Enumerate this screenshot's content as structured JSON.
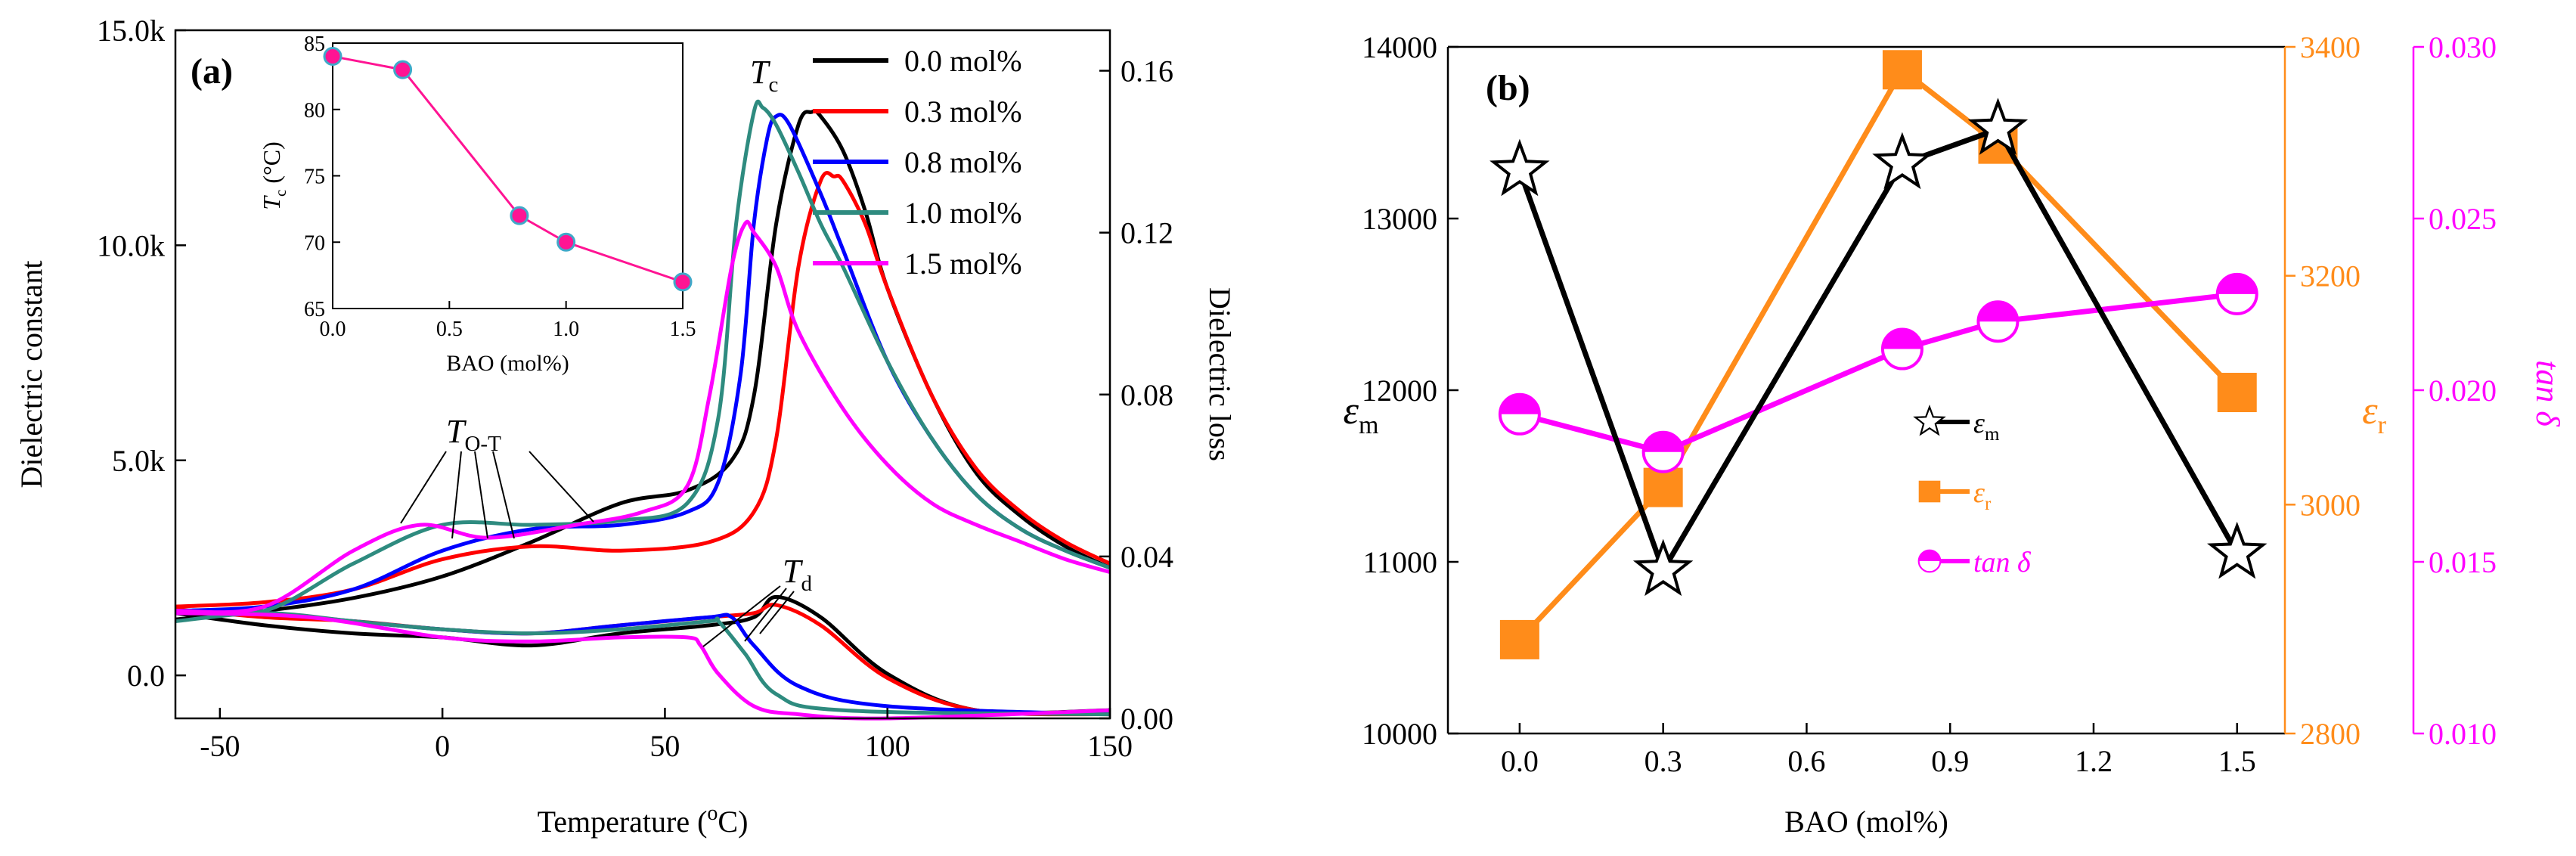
{
  "figure": {
    "panel_a_label": "(a)",
    "panel_b_label": "(b)"
  },
  "chart_data": [
    {
      "id": "a",
      "type": "line",
      "title": "",
      "xlabel": "Temperature (°C)",
      "ylabel_left": "Dielectric constant",
      "ylabel_right": "Dielectric loss",
      "xlim": [
        -60,
        150
      ],
      "ylim_left": [
        -1000,
        15000
      ],
      "ylim_right": [
        0.0,
        0.17
      ],
      "x_ticks": [
        -50,
        0,
        50,
        100,
        150
      ],
      "y_left_ticks": [
        0,
        5000,
        10000,
        15000
      ],
      "y_left_tick_labels": [
        "0.0",
        "5.0k",
        "10.0k",
        "15.0k"
      ],
      "y_right_ticks": [
        0.0,
        0.04,
        0.08,
        0.12,
        0.16
      ],
      "y_right_tick_labels": [
        "0.00",
        "0.04",
        "0.08",
        "0.12",
        "0.16"
      ],
      "annotations": {
        "Tc": {
          "main": "T",
          "sub": "c"
        },
        "TOT": {
          "main": "T",
          "sub": "O-T"
        },
        "Td": {
          "main": "T",
          "sub": "d"
        }
      },
      "series": [
        {
          "name": "0.0 mol%",
          "color": "#000000",
          "constant": {
            "x": [
              -60,
              -40,
              -20,
              0,
              20,
              40,
              55,
              65,
              70,
              75,
              80,
              83,
              85,
              90,
              95,
              100,
              110,
              120,
              130,
              140,
              150
            ],
            "y": [
              1300,
              1500,
              1800,
              2300,
              3100,
              4000,
              4300,
              5000,
              6500,
              10500,
              12800,
              13100,
              13000,
              12200,
              10800,
              9000,
              6500,
              4700,
              3700,
              3000,
              2500
            ]
          },
          "loss": {
            "x": [
              -60,
              -40,
              -20,
              0,
              20,
              40,
              60,
              70,
              75,
              85,
              100,
              120,
              150
            ],
            "y": [
              0.026,
              0.023,
              0.021,
              0.02,
              0.018,
              0.021,
              0.023,
              0.025,
              0.03,
              0.025,
              0.011,
              0.002,
              0.002
            ]
          }
        },
        {
          "name": "0.3 mol%",
          "color": "#ff0000",
          "constant": {
            "x": [
              -60,
              -40,
              -20,
              0,
              20,
              40,
              60,
              70,
              75,
              80,
              85,
              88,
              90,
              95,
              100,
              110,
              120,
              130,
              140,
              150
            ],
            "y": [
              1600,
              1700,
              2000,
              2700,
              3000,
              2900,
              3100,
              3800,
              5500,
              9500,
              11500,
              11600,
              11500,
              10500,
              9000,
              6500,
              4800,
              3800,
              3100,
              2600
            ]
          },
          "loss": {
            "x": [
              -60,
              -40,
              -20,
              0,
              20,
              40,
              60,
              70,
              75,
              85,
              100,
              120,
              150
            ],
            "y": [
              0.027,
              0.025,
              0.024,
              0.022,
              0.021,
              0.023,
              0.025,
              0.026,
              0.028,
              0.023,
              0.01,
              0.002,
              0.001
            ]
          }
        },
        {
          "name": "0.8 mol%",
          "color": "#0000ff",
          "constant": {
            "x": [
              -60,
              -40,
              -20,
              0,
              20,
              40,
              55,
              62,
              67,
              70,
              73,
              75,
              78,
              85,
              90,
              100,
              110,
              120,
              130,
              140,
              150
            ],
            "y": [
              1500,
              1600,
              2000,
              2900,
              3400,
              3500,
              3800,
              4500,
              7000,
              10500,
              12500,
              13000,
              12800,
              11200,
              9900,
              7300,
              5500,
              4200,
              3400,
              2900,
              2500
            ]
          },
          "loss": {
            "x": [
              -60,
              -40,
              -20,
              0,
              20,
              40,
              60,
              65,
              70,
              80,
              100,
              150
            ],
            "y": [
              0.026,
              0.026,
              0.024,
              0.022,
              0.021,
              0.023,
              0.025,
              0.025,
              0.018,
              0.008,
              0.003,
              0.001
            ]
          }
        },
        {
          "name": "1.0 mol%",
          "color": "#2e8b7f",
          "constant": {
            "x": [
              -60,
              -40,
              -20,
              0,
              20,
              40,
              55,
              62,
              66,
              70,
              72,
              75,
              80,
              85,
              90,
              100,
              110,
              120,
              130,
              140,
              150
            ],
            "y": [
              1500,
              1500,
              2600,
              3500,
              3500,
              3600,
              4000,
              6000,
              10500,
              13100,
              13200,
              12800,
              11700,
              10500,
              9500,
              7300,
              5500,
              4200,
              3400,
              2900,
              2500
            ]
          },
          "loss": {
            "x": [
              -60,
              -40,
              -20,
              0,
              20,
              40,
              60,
              62,
              68,
              75,
              90,
              150
            ],
            "y": [
              0.024,
              0.026,
              0.024,
              0.022,
              0.021,
              0.022,
              0.024,
              0.024,
              0.016,
              0.006,
              0.002,
              0.001
            ]
          }
        },
        {
          "name": "1.5  mol%",
          "color": "#ff00ff",
          "constant": {
            "x": [
              -60,
              -40,
              -20,
              -5,
              10,
              30,
              45,
              55,
              60,
              65,
              68,
              70,
              75,
              80,
              90,
              100,
              110,
              120,
              130,
              140,
              150
            ],
            "y": [
              1500,
              1600,
              2900,
              3500,
              3200,
              3500,
              3800,
              4400,
              6500,
              9500,
              10500,
              10300,
              9500,
              8000,
              6200,
              4900,
              4000,
              3500,
              3100,
              2700,
              2400
            ]
          },
          "loss": {
            "x": [
              -60,
              -30,
              0,
              20,
              40,
              55,
              58,
              62,
              70,
              80,
              100,
              150
            ],
            "y": [
              0.026,
              0.025,
              0.02,
              0.019,
              0.02,
              0.02,
              0.018,
              0.011,
              0.003,
              0.001,
              0.0,
              0.002
            ]
          }
        }
      ]
    },
    {
      "id": "inset",
      "type": "line",
      "xlabel": "BAO (mol%)",
      "ylabel": {
        "main": "T",
        "sub": "c",
        "unit": " (°C)"
      },
      "xlim": [
        0,
        1.5
      ],
      "ylim": [
        65,
        85
      ],
      "x_ticks": [
        0.0,
        0.5,
        1.0,
        1.5
      ],
      "x_tick_labels": [
        "0.0",
        "0.5",
        "1.0",
        "1.5"
      ],
      "y_ticks": [
        65,
        70,
        75,
        80,
        85
      ],
      "series": [
        {
          "name": "Tc",
          "color": "#ff1493",
          "x": [
            0.0,
            0.3,
            0.8,
            1.0,
            1.5
          ],
          "y": [
            84,
            83,
            72,
            70,
            67
          ]
        }
      ]
    },
    {
      "id": "b",
      "type": "line",
      "xlabel": "BAO  (mol%)",
      "ylabel_left": {
        "main": "ε",
        "sub": "m"
      },
      "ylabel_right1": {
        "main": "ε",
        "sub": "r"
      },
      "ylabel_right2": {
        "main": "tan δ"
      },
      "xlim": [
        -0.15,
        1.6
      ],
      "ylim_left": [
        10000,
        14000
      ],
      "ylim_right1": [
        2800,
        3400
      ],
      "ylim_right2": [
        0.01,
        0.03
      ],
      "x_ticks": [
        0.0,
        0.3,
        0.6,
        0.9,
        1.2,
        1.5
      ],
      "x_tick_labels": [
        "0.0",
        "0.3",
        "0.6",
        "0.9",
        "1.2",
        "1.5"
      ],
      "y_left_ticks": [
        10000,
        11000,
        12000,
        13000,
        14000
      ],
      "y_right1_ticks": [
        2800,
        3000,
        3200,
        3400
      ],
      "y_right2_ticks": [
        0.01,
        0.015,
        0.02,
        0.025,
        0.03
      ],
      "y_right2_tick_labels": [
        "0.010",
        "0.015",
        "0.020",
        "0.025",
        "0.030"
      ],
      "series": [
        {
          "name": "ε_m",
          "legend": {
            "main": "ε",
            "sub": "m"
          },
          "marker": "star",
          "color": "#000000",
          "axis": "left",
          "x": [
            0.0,
            0.3,
            0.8,
            1.0,
            1.5
          ],
          "y": [
            13280,
            10950,
            13320,
            13520,
            11050
          ]
        },
        {
          "name": "ε_r",
          "legend": {
            "main": "ε",
            "sub": "r"
          },
          "marker": "square",
          "color": "#ff8c1a",
          "axis": "right1",
          "x": [
            0.0,
            0.3,
            0.8,
            1.0,
            1.5
          ],
          "y": [
            2882,
            3015,
            3380,
            3315,
            3098
          ]
        },
        {
          "name": "tan δ",
          "legend": {
            "main": "tan δ"
          },
          "marker": "half-circle",
          "color": "#ff00ff",
          "axis": "right2",
          "x": [
            0.0,
            0.3,
            0.8,
            1.0,
            1.5
          ],
          "y": [
            0.0193,
            0.0182,
            0.0212,
            0.022,
            0.0228
          ]
        }
      ]
    }
  ]
}
